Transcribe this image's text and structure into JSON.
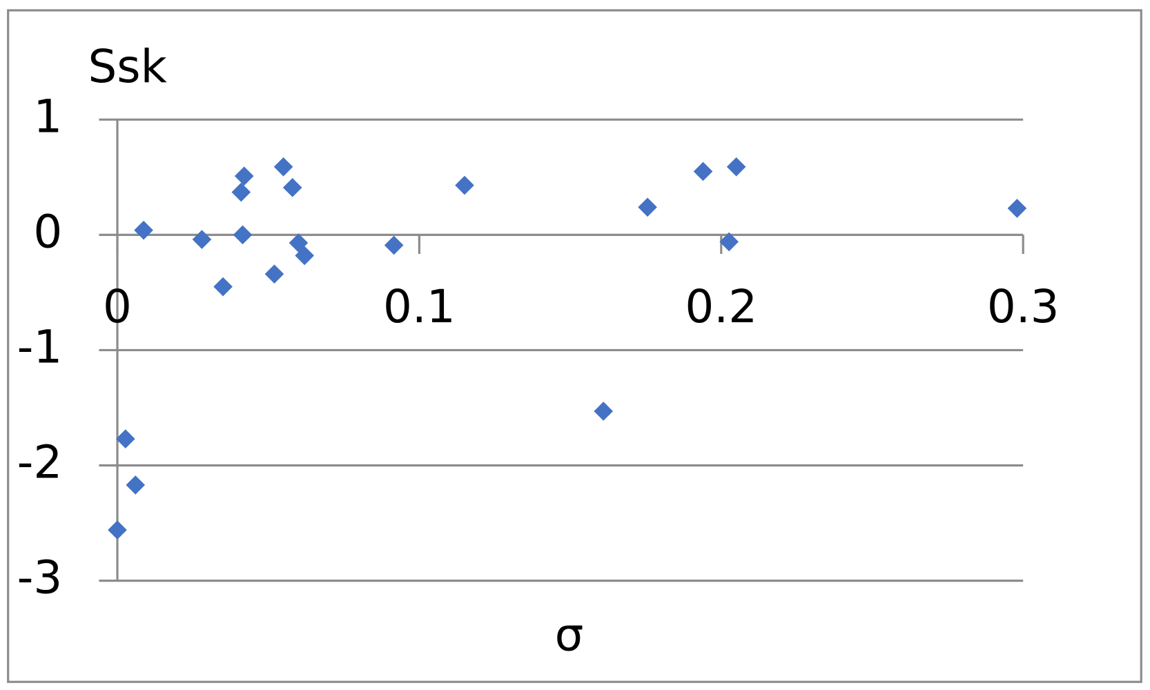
{
  "chart_data": {
    "type": "scatter",
    "x_label": "σ",
    "y_label": "Ssk",
    "color": "#4472c4",
    "grid": true,
    "x": [
      0.0087,
      0.028,
      0.035,
      0.041,
      0.042,
      0.0415,
      0.052,
      0.055,
      0.058,
      0.06,
      0.062,
      0.0916,
      0.115,
      0.161,
      0.1756,
      0.194,
      0.2026,
      0.205,
      0.298,
      0.0027,
      0.006,
      0
    ],
    "values": [
      0.04,
      -0.04,
      -0.45,
      0.37,
      0.51,
      0,
      -0.34,
      0.59,
      0.41,
      -0.07,
      -0.18,
      -0.09,
      0.43,
      -1.53,
      0.24,
      0.55,
      -0.06,
      0.59,
      0.23,
      -1.77,
      -2.17,
      -2.56
    ],
    "xlim": [
      0,
      0.3
    ],
    "ylim": [
      -3,
      1
    ],
    "xticks": [
      0,
      0.1,
      0.2,
      0.3
    ],
    "yticks": [
      -3,
      -2,
      -1,
      0,
      1
    ]
  }
}
